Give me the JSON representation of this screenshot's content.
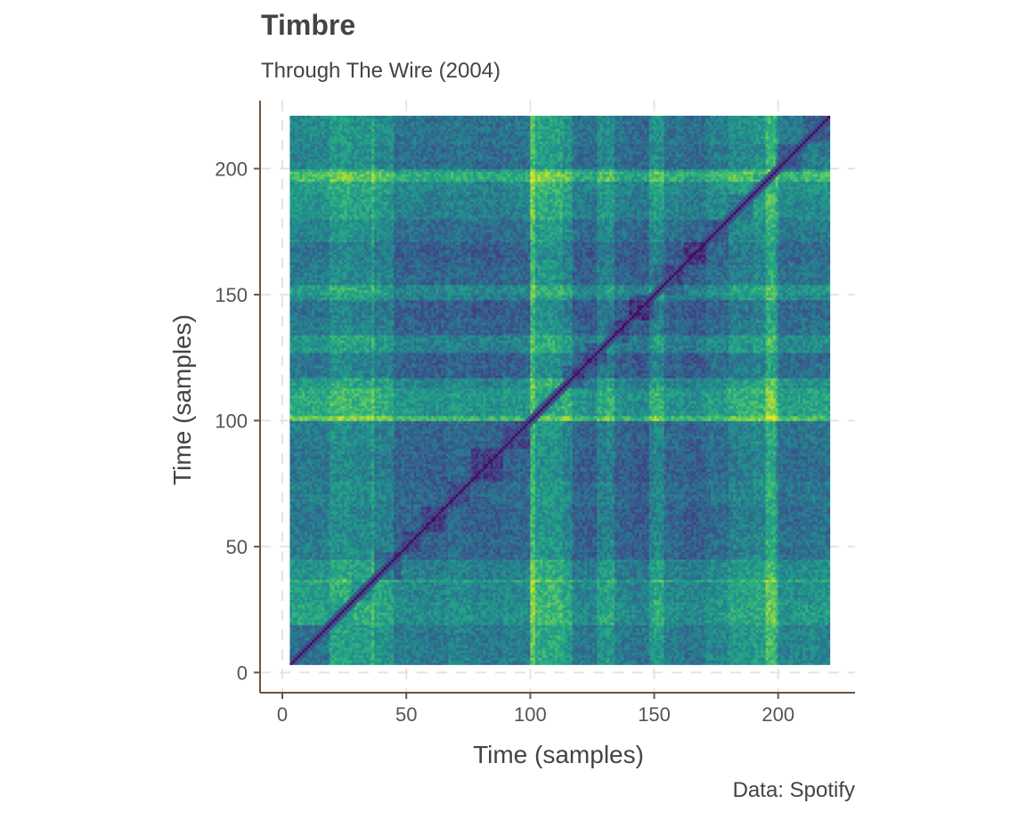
{
  "chart_data": {
    "type": "heatmap",
    "title": "Timbre",
    "subtitle": "Through The Wire (2004)",
    "caption": "Data: Spotify",
    "xlabel": "Time (samples)",
    "ylabel": "Time (samples)",
    "xlim": [
      -9,
      231
    ],
    "ylim": [
      -8,
      227
    ],
    "xticks": [
      0,
      50,
      100,
      150,
      200
    ],
    "yticks": [
      0,
      50,
      100,
      150,
      200
    ],
    "grid": true,
    "n_samples": 218,
    "first_sample": 3,
    "segment_bounds": [
      3,
      19,
      28,
      37,
      48,
      56,
      66,
      76,
      89,
      100,
      113,
      122,
      131,
      140,
      150,
      162,
      171,
      180,
      190,
      199,
      210,
      221
    ],
    "segment_values": [
      0.5,
      0.66,
      0.6,
      0.32,
      0.34,
      0.3,
      0.36,
      0.3,
      0.34,
      0.72,
      0.3,
      0.28,
      0.32,
      0.26,
      0.34,
      0.28,
      0.4,
      0.54,
      0.6,
      0.4,
      0.44
    ],
    "highlight_bands": [
      {
        "x": [
          36,
          44
        ],
        "level": 0.2
      },
      {
        "x": [
          100,
          101
        ],
        "level": 0.28
      },
      {
        "x": [
          113,
          116
        ],
        "level": 0.26
      },
      {
        "x": [
          127,
          133
        ],
        "level": 0.22
      },
      {
        "x": [
          148,
          153
        ],
        "level": 0.24
      },
      {
        "x": [
          195,
          199
        ],
        "level": 0.28
      }
    ],
    "colormap": [
      "#440154",
      "#472c7a",
      "#3b518b",
      "#2c718e",
      "#21908d",
      "#27ad81",
      "#5cc863",
      "#aadc32",
      "#fde725"
    ]
  }
}
